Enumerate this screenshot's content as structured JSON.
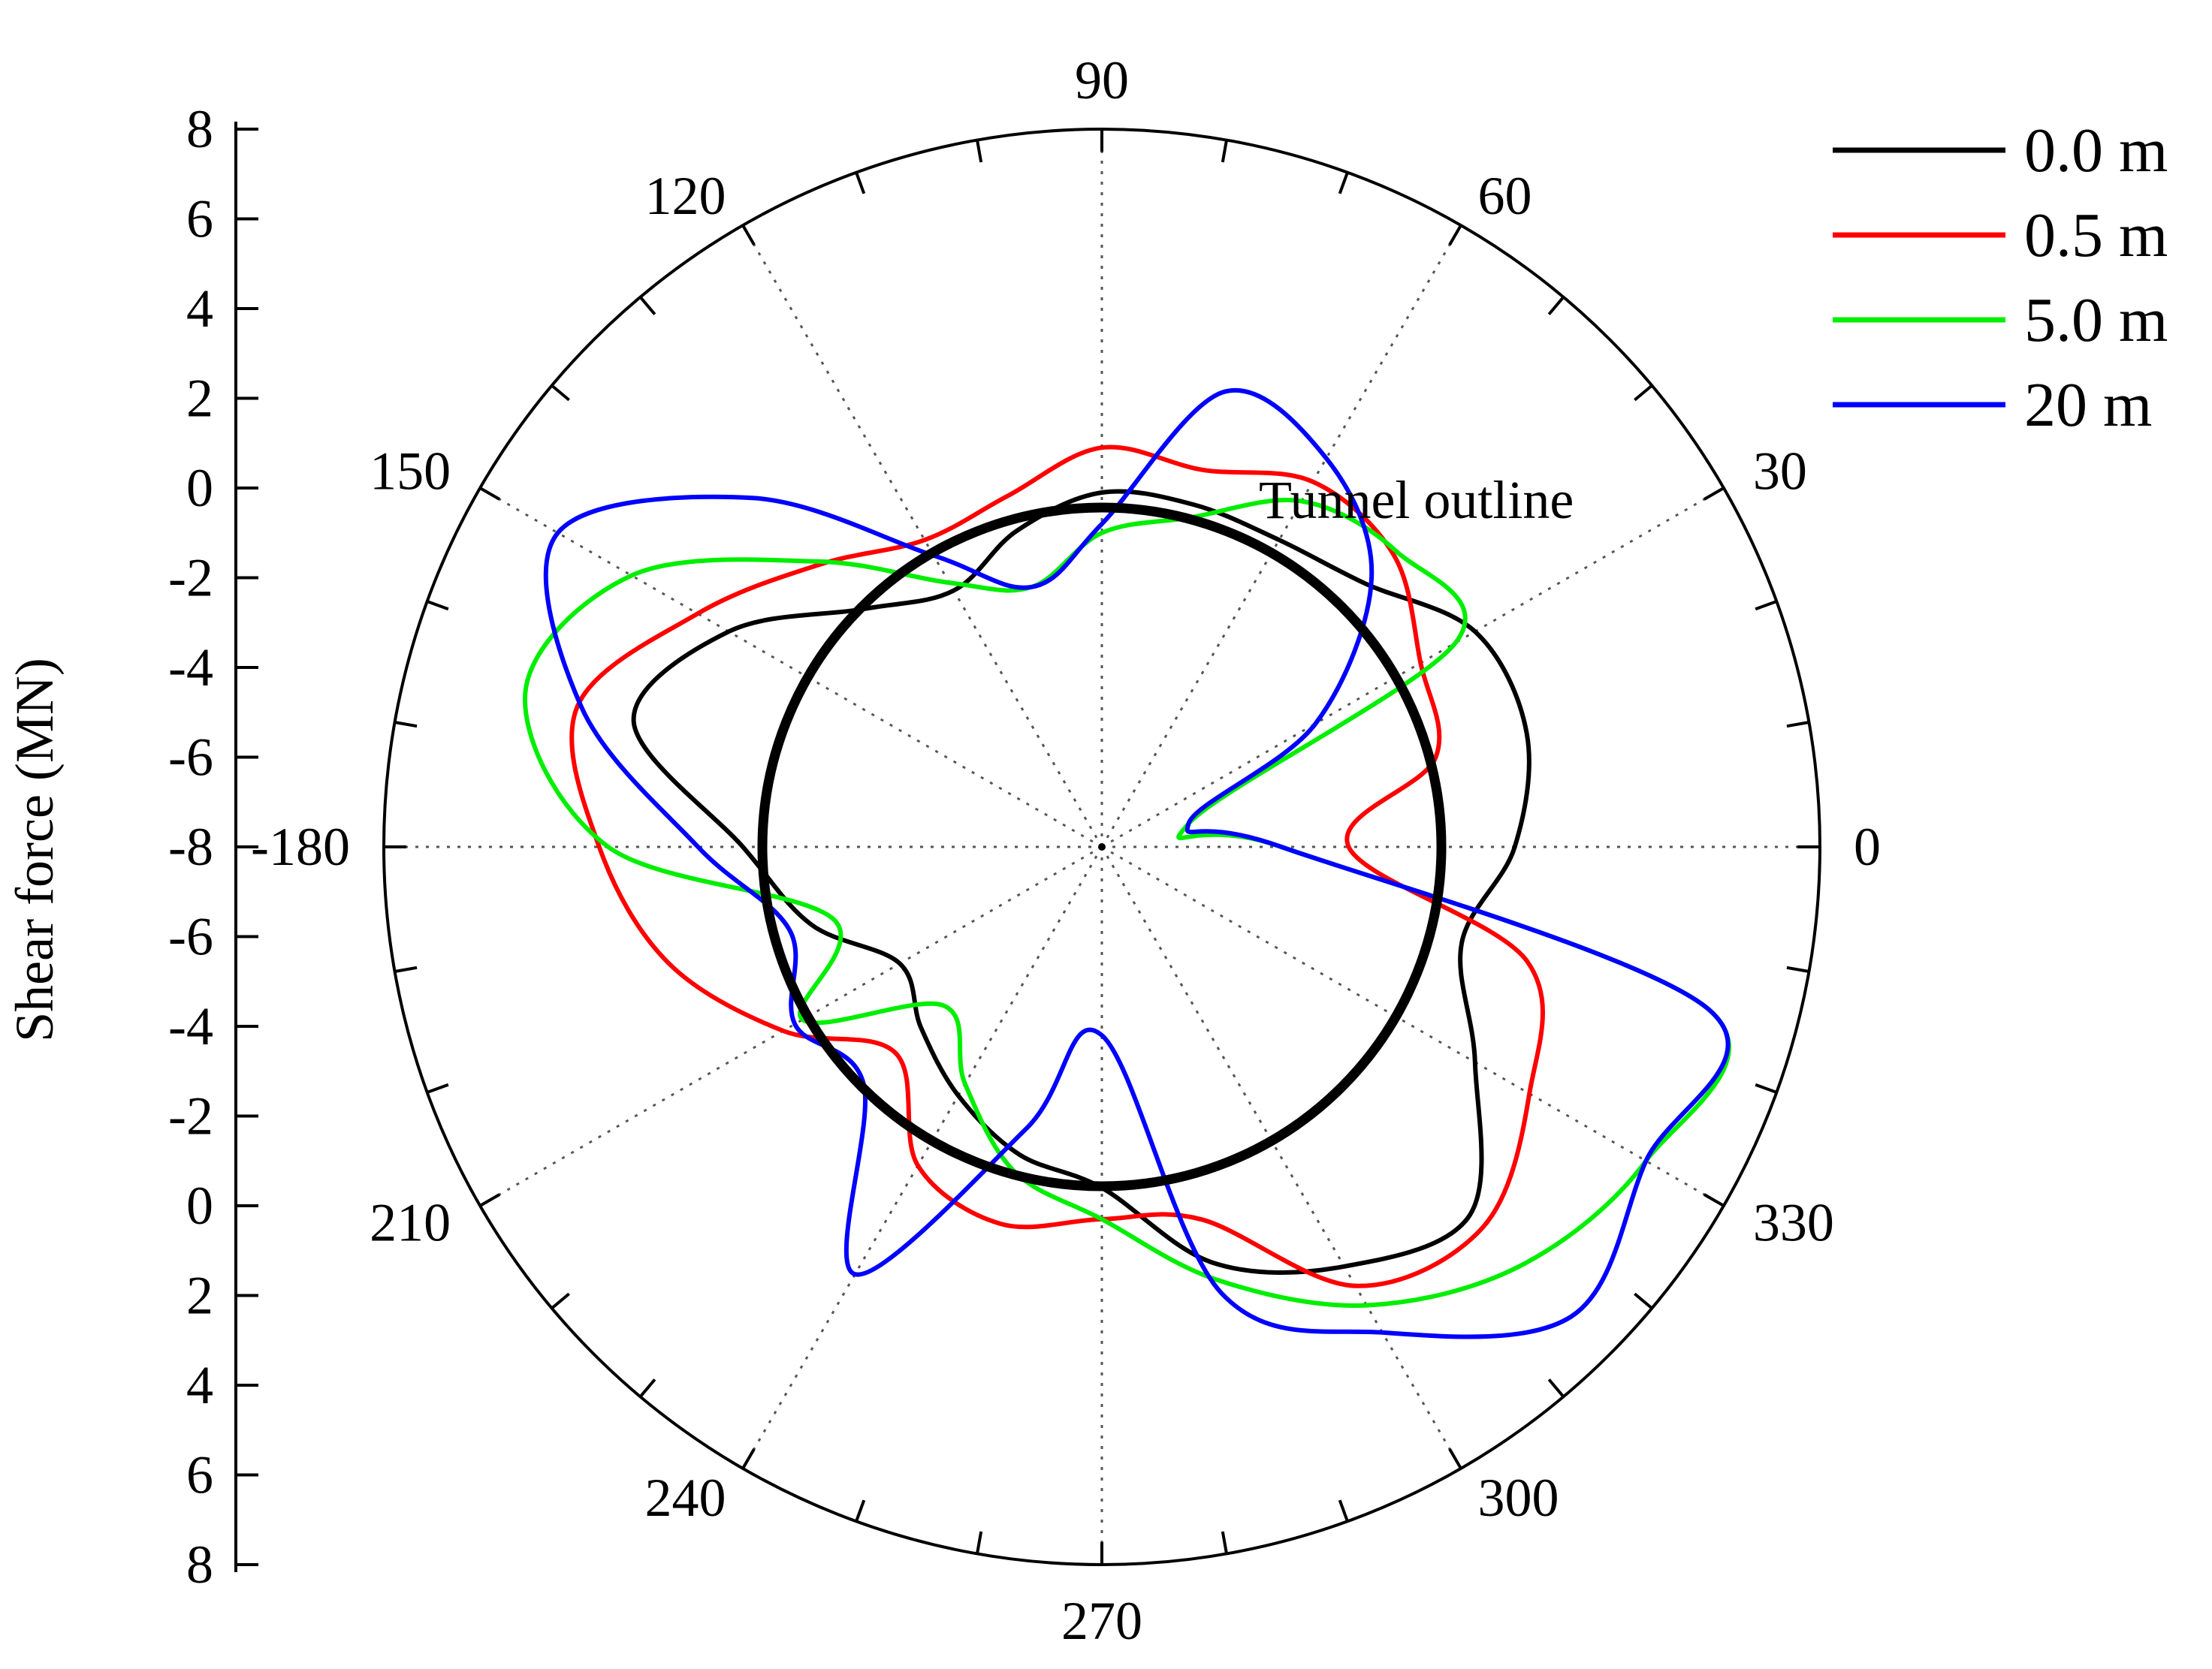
{
  "chart_data": {
    "type": "polar-line",
    "ylabel": "Shear force (MN)",
    "annotation": "Tunnel outline",
    "angle_ticks": [
      0,
      30,
      60,
      90,
      120,
      150,
      180,
      210,
      240,
      270,
      300,
      330
    ],
    "angle_tick_labels": [
      "0",
      "30",
      "60",
      "90",
      "120",
      "150",
      "-180",
      "210",
      "240",
      "270",
      "300",
      "330"
    ],
    "radial_axis": {
      "min": -8,
      "max": 8,
      "center_value": -8,
      "tunnel_outline_value": 0,
      "tick_values": [
        8,
        6,
        4,
        2,
        0,
        -2,
        -4,
        -6,
        -8,
        -6,
        -4,
        -2,
        0,
        2,
        4,
        6,
        8
      ],
      "tick_labels": [
        "8",
        "6",
        "4",
        "2",
        "0",
        "-2",
        "-4",
        "-6",
        "-8",
        "-6",
        "-4",
        "-2",
        "0",
        "2",
        "4",
        "6",
        "8"
      ]
    },
    "grid": true,
    "legend_position": "top-right",
    "angles_deg": [
      0,
      15,
      30,
      45,
      60,
      75,
      90,
      105,
      120,
      135,
      150,
      165,
      180,
      195,
      210,
      225,
      240,
      255,
      270,
      285,
      300,
      315,
      330,
      345
    ],
    "series": [
      {
        "name": "0.0 m",
        "color": "#000000",
        "values": [
          1.2,
          1.8,
          1.6,
          0.3,
          -0.1,
          -0.1,
          -0.1,
          -0.7,
          -1.4,
          -0.5,
          1.6,
          2.8,
          0,
          -1.3,
          -2.8,
          -2.3,
          -1.6,
          -0.9,
          -0.4,
          1.6,
          2.8,
          3.6,
          1.6,
          0.3
        ]
      },
      {
        "name": "0.5 m",
        "color": "#ff0000",
        "values": [
          -2.5,
          -0.3,
          0.2,
          1.2,
          1.4,
          0.7,
          0.9,
          0.1,
          -0.1,
          0.9,
          2.4,
          4.1,
          3.2,
          2.0,
          0.2,
          -1.5,
          0.2,
          0.7,
          0.3,
          0.6,
          3.3,
          4.0,
          3.0,
          1.8
        ]
      },
      {
        "name": "5.0 m",
        "color": "#00ee00",
        "values": [
          -4.0,
          -6.0,
          1.1,
          1.3,
          0.9,
          -0.4,
          -1.0,
          -2.0,
          -1.2,
          1.0,
          4.1,
          5.3,
          3.0,
          -1.8,
          -0.3,
          -3.0,
          -1.9,
          -0.5,
          0.3,
          2.0,
          3.8,
          5.2,
          6.0,
          6.0
        ]
      },
      {
        "name": "20 m",
        "color": "#0000ff",
        "values": [
          -4.0,
          -6.0,
          -2.5,
          0.5,
          2.0,
          2.5,
          -0.8,
          -2.0,
          -0.5,
          3.0,
          6.0,
          4.0,
          1.0,
          -0.8,
          -0.1,
          -0.5,
          3.0,
          -1.5,
          -3.8,
          2.3,
          4.5,
          6.8,
          6.0,
          6.0
        ]
      }
    ]
  }
}
